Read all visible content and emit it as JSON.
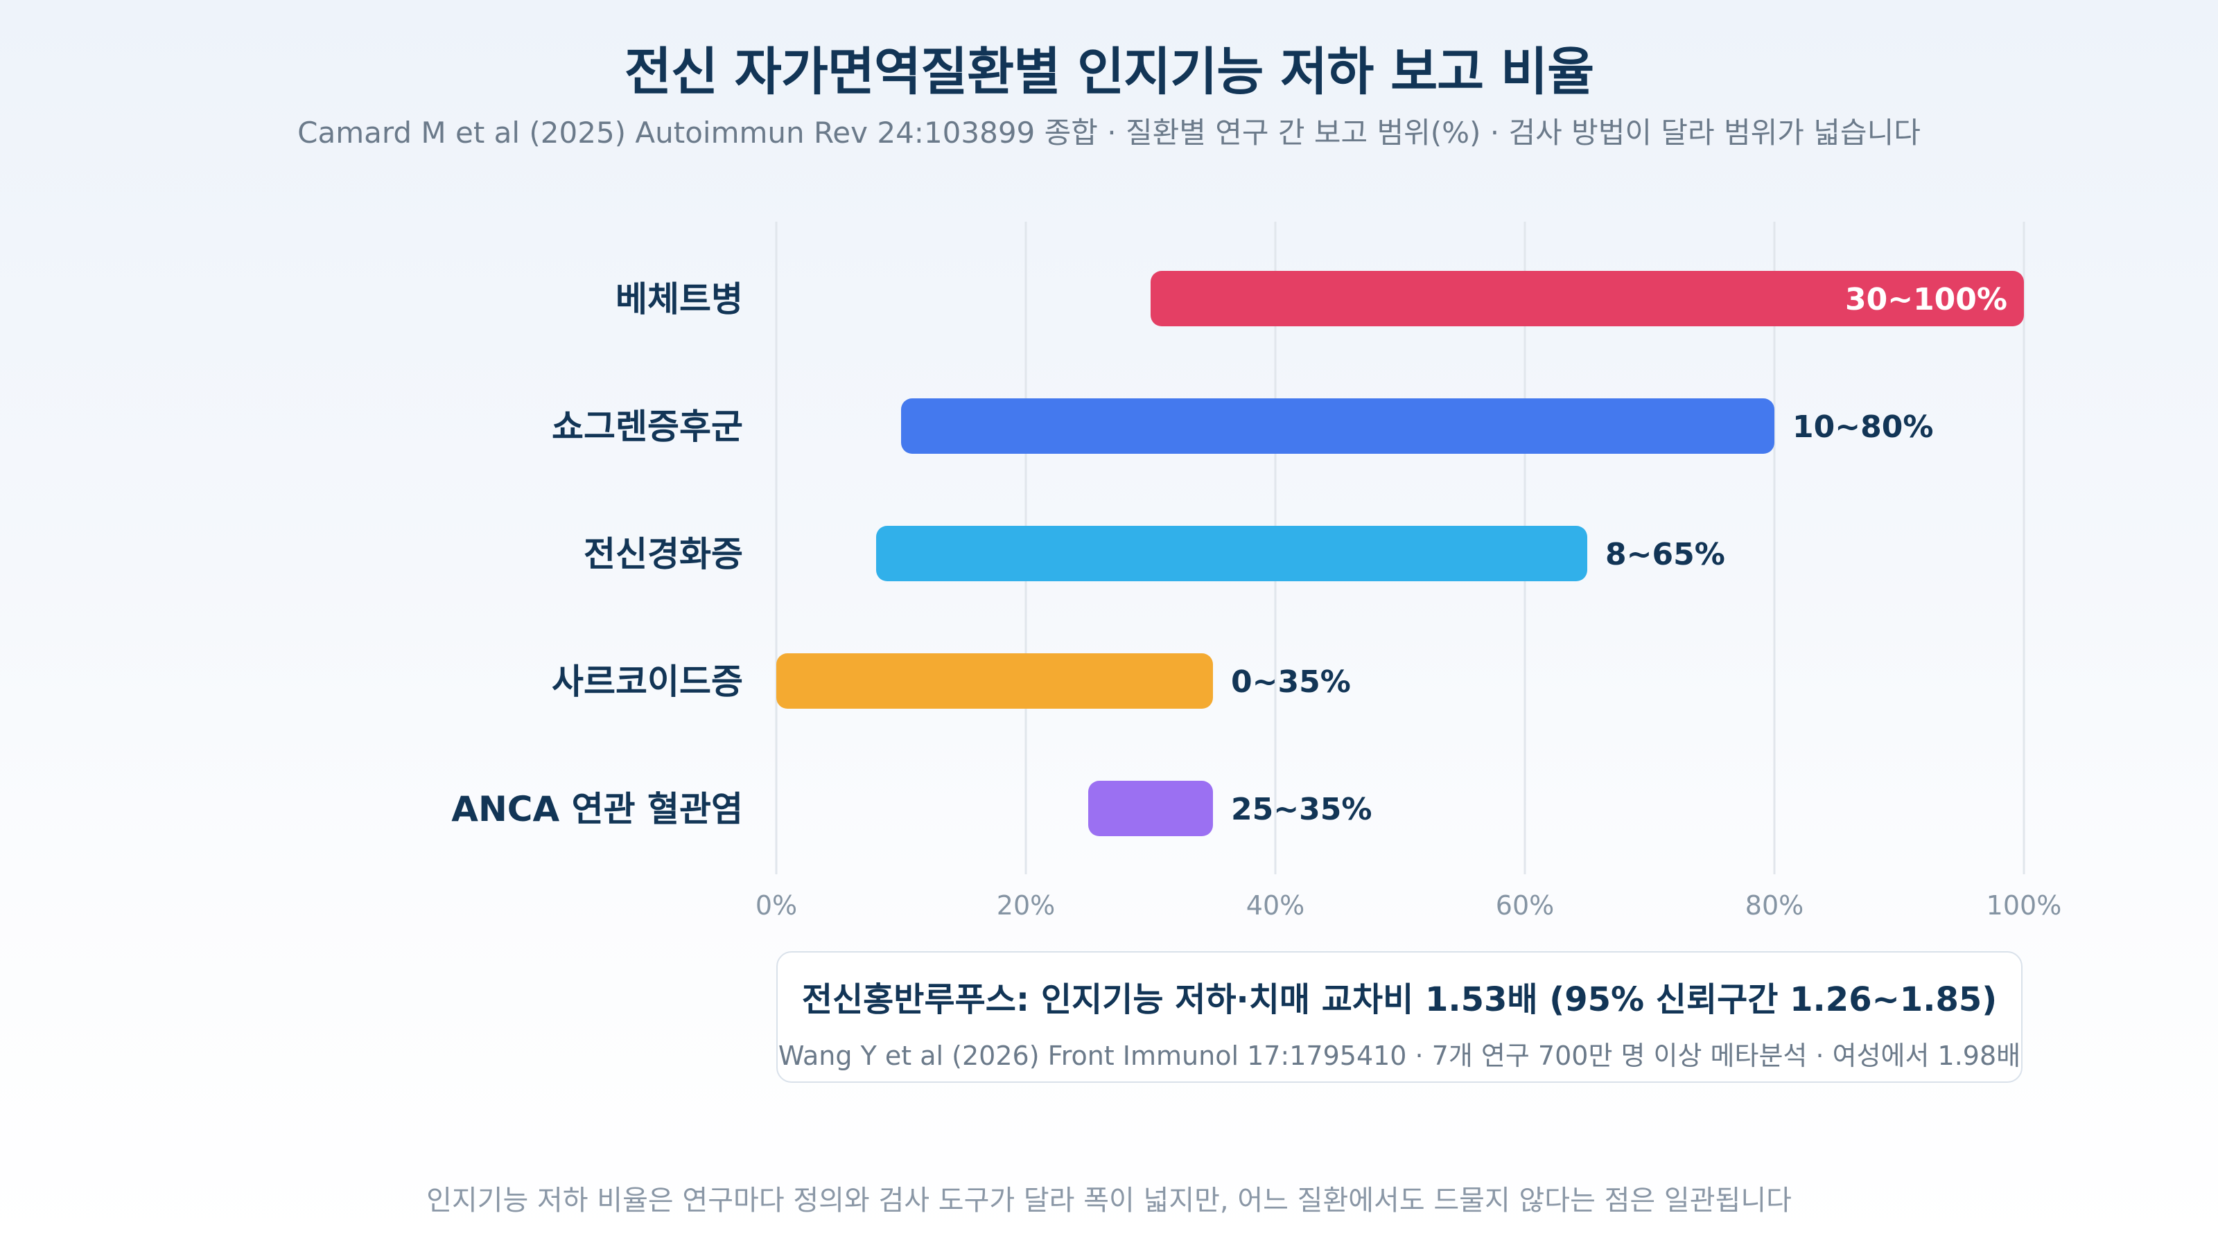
{
  "title": "전신 자가면역질환별 인지기능 저하 보고 비율",
  "subtitle": "Camard M et al (2025) Autoimmun Rev 24:103899 종합 · 질환별 연구 간 보고 범위(%) · 검사 방법이 달라 범위가 넓습니다",
  "chart_data": {
    "type": "bar",
    "orientation": "horizontal",
    "categories": [
      "베체트병",
      "쇼그렌증후군",
      "전신경화증",
      "사르코이드증",
      "ANCA 연관 혈관염"
    ],
    "ranges": [
      [
        30,
        100
      ],
      [
        10,
        80
      ],
      [
        8,
        65
      ],
      [
        0,
        35
      ],
      [
        25,
        35
      ]
    ],
    "value_labels": [
      "30~100%",
      "10~80%",
      "8~65%",
      "0~35%",
      "25~35%"
    ],
    "colors": [
      "#e43f64",
      "#4479ee",
      "#31b0ea",
      "#f4aa31",
      "#9b70f2"
    ],
    "xlim": [
      0,
      100
    ],
    "xticks": [
      0,
      20,
      40,
      60,
      80,
      100
    ],
    "xtick_labels": [
      "0%",
      "20%",
      "40%",
      "60%",
      "80%",
      "100%"
    ],
    "grid": true
  },
  "note": {
    "title": "전신홍반루푸스: 인지기능 저하·치매 교차비 1.53배 (95% 신뢰구간 1.26~1.85)",
    "source": "Wang Y et al (2026) Front Immunol 17:1795410 · 7개 연구 700만 명 이상 메타분석 · 여성에서 1.98배"
  },
  "footer": "인지기능 저하 비율은 연구마다 정의와 검사 도구가 달라 폭이 넓지만, 어느 질환에서도 드물지 않다는 점은 일관됩니다"
}
